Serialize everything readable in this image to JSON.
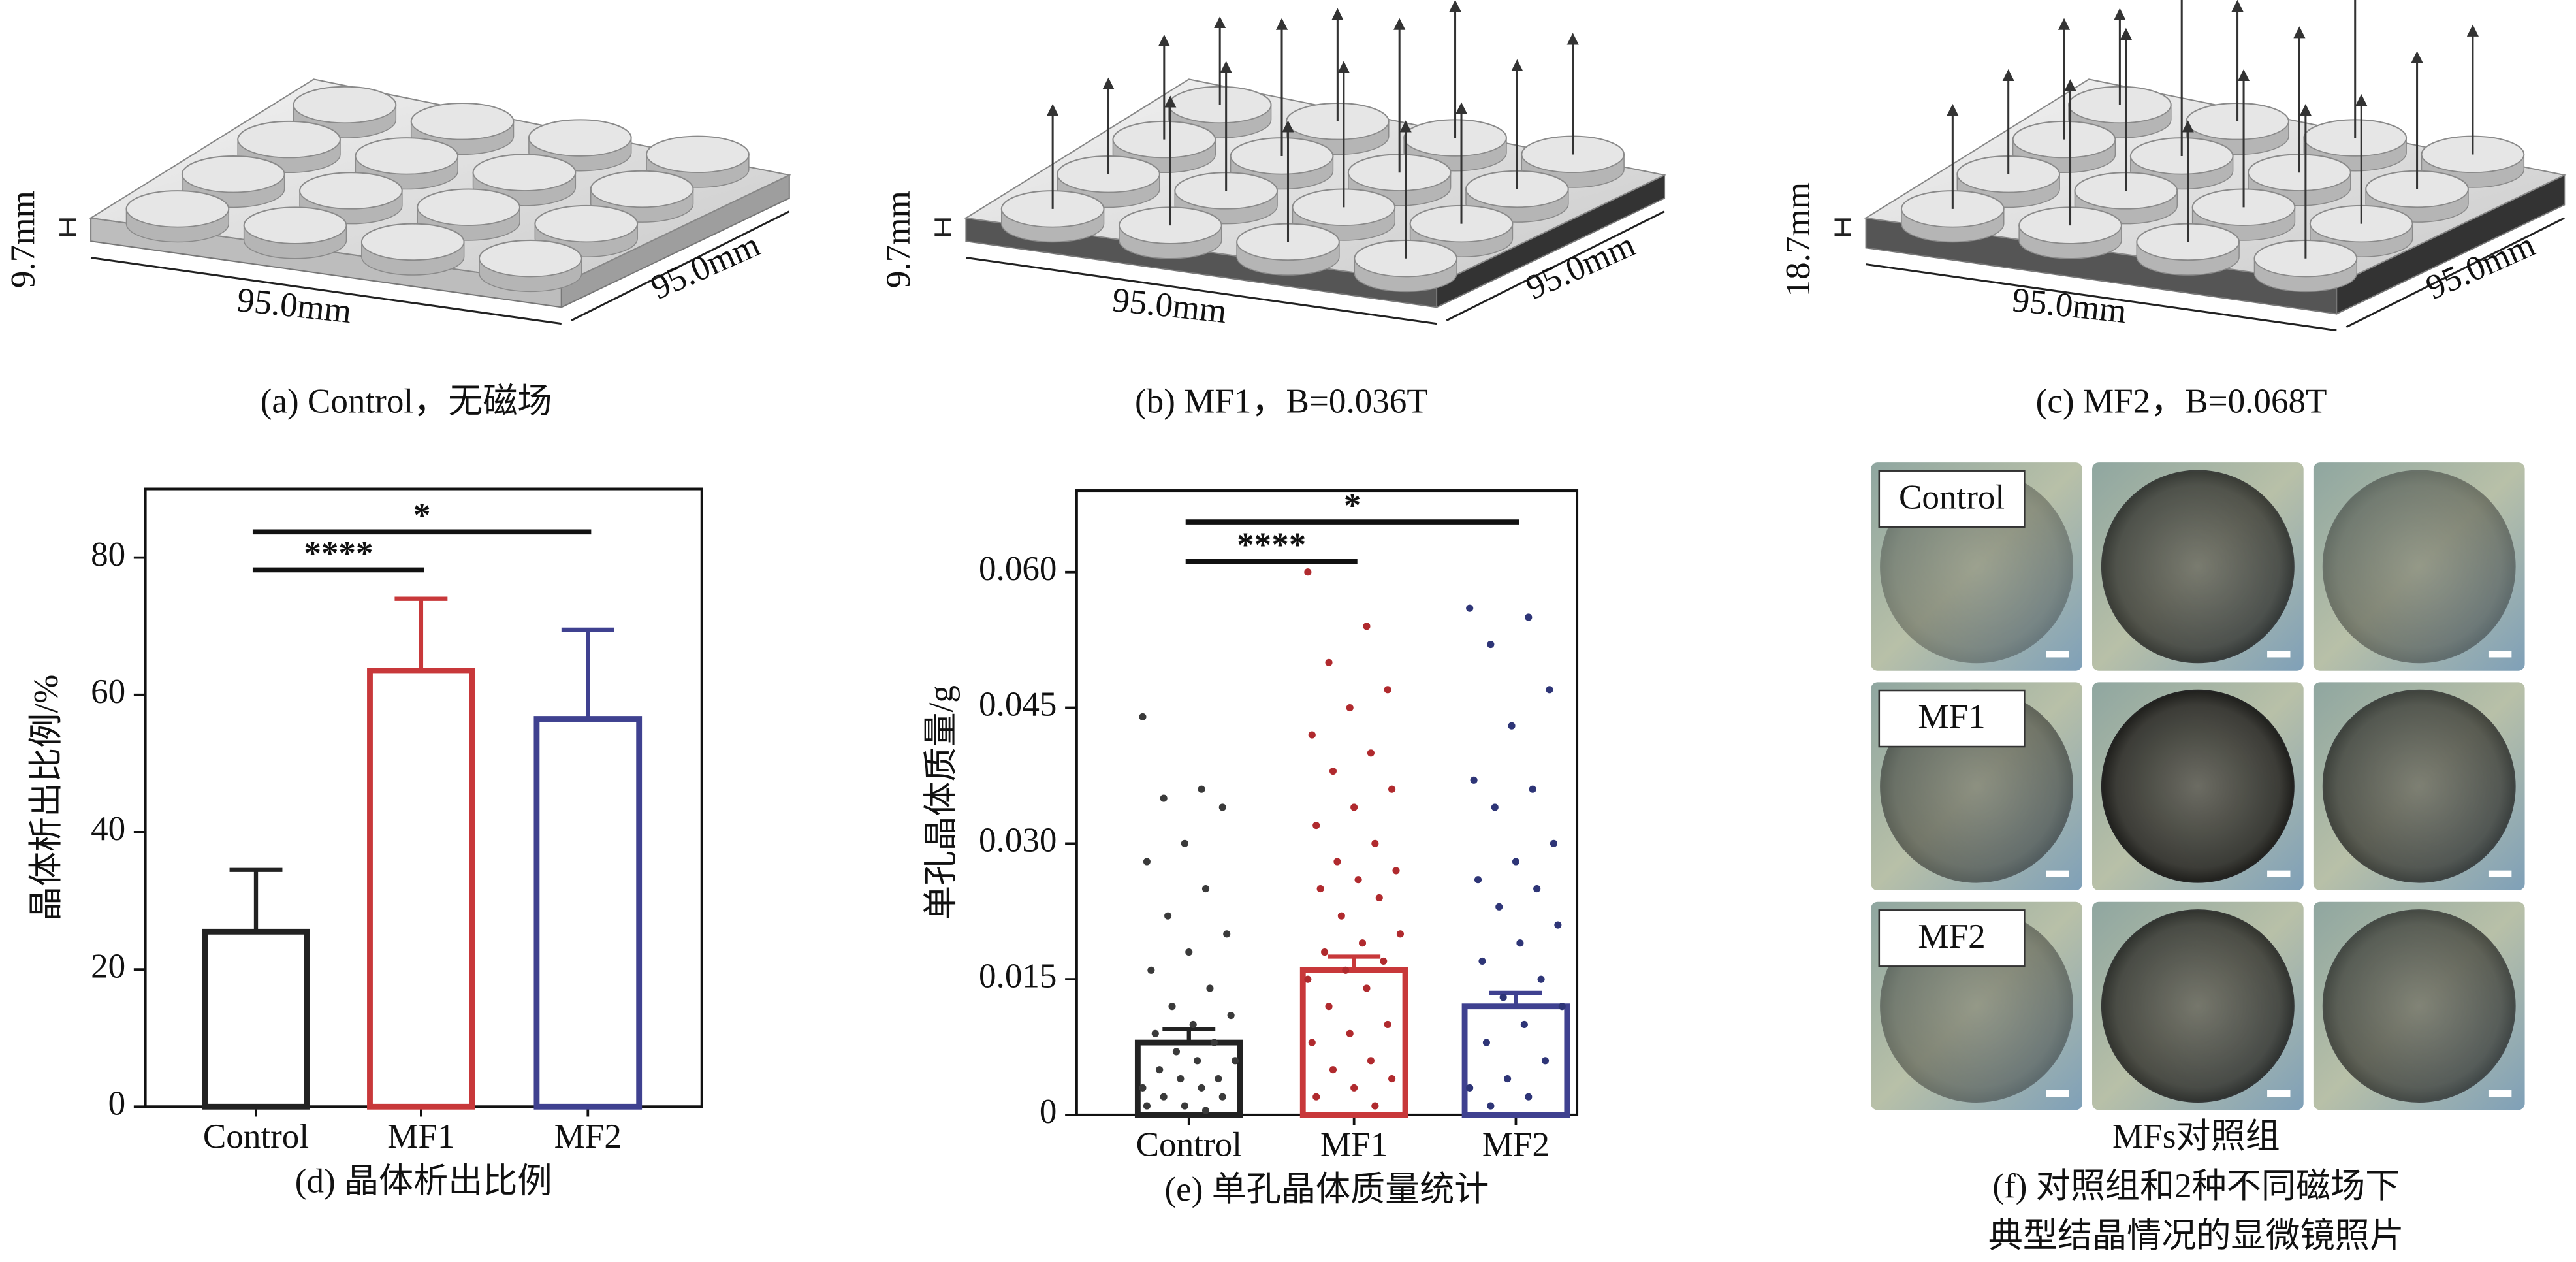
{
  "panels": [
    {
      "caption": "(a) Control，无磁场",
      "height_label": "9.7mm",
      "width_label": "95.0mm",
      "depth_label": "95.0mm"
    },
    {
      "caption": "(b) MF1，B=0.036T",
      "height_label": "9.7mm",
      "width_label": "95.0mm",
      "depth_label": "95.0mm"
    },
    {
      "caption": "(c) MF2，B=0.068T",
      "height_label": "18.7mm",
      "width_label": "95.0mm",
      "depth_label": "95.0mm"
    }
  ],
  "chart_data": [
    {
      "type": "bar",
      "caption": "(d) 晶体析出比例",
      "ylabel": "晶体析出比例/%",
      "categories": [
        "Control",
        "MF1",
        "MF2"
      ],
      "values": [
        25.5,
        63.5,
        56.5
      ],
      "errors": [
        9,
        10.5,
        13
      ],
      "colors": [
        "#222222",
        "#c8383a",
        "#3f4190"
      ],
      "ylim": [
        0,
        90
      ],
      "yticks": [
        0,
        20,
        40,
        60,
        80
      ],
      "annotations": [
        "****",
        "*"
      ]
    },
    {
      "type": "bar",
      "caption": "(e) 单孔晶体质量统计",
      "ylabel": "单孔晶体质量/g",
      "categories": [
        "Control",
        "MF1",
        "MF2"
      ],
      "values": [
        0.008,
        0.016,
        0.012
      ],
      "errors": [
        0.0015,
        0.0015,
        0.0015
      ],
      "colors": [
        "#222222",
        "#c8383a",
        "#3f4190"
      ],
      "point_colors": [
        "#3a3a3a",
        "#b02a2e",
        "#2e3577"
      ],
      "points": [
        [
          0.044,
          0.036,
          0.035,
          0.034,
          0.03,
          0.028,
          0.025,
          0.022,
          0.02,
          0.018,
          0.016,
          0.014,
          0.012,
          0.011,
          0.01,
          0.009,
          0.008,
          0.007,
          0.006,
          0.006,
          0.005,
          0.004,
          0.004,
          0.003,
          0.003,
          0.002,
          0.002,
          0.001,
          0.001,
          0.0005
        ],
        [
          0.06,
          0.054,
          0.05,
          0.047,
          0.045,
          0.042,
          0.04,
          0.038,
          0.036,
          0.034,
          0.032,
          0.03,
          0.028,
          0.027,
          0.026,
          0.025,
          0.024,
          0.022,
          0.02,
          0.019,
          0.018,
          0.017,
          0.016,
          0.015,
          0.014,
          0.012,
          0.01,
          0.009,
          0.008,
          0.006,
          0.005,
          0.004,
          0.003,
          0.002,
          0.001
        ],
        [
          0.056,
          0.055,
          0.052,
          0.047,
          0.043,
          0.037,
          0.036,
          0.034,
          0.03,
          0.028,
          0.026,
          0.025,
          0.023,
          0.021,
          0.019,
          0.017,
          0.015,
          0.013,
          0.012,
          0.01,
          0.008,
          0.006,
          0.004,
          0.003,
          0.002,
          0.001
        ]
      ],
      "ylim": [
        0,
        0.069
      ],
      "yticks": [
        0,
        0.015,
        {
          "value": 0.03,
          "label": "0.030"
        },
        0.045,
        {
          "value": 0.06,
          "label": "0.060"
        }
      ],
      "annotations": [
        "****",
        "*"
      ]
    }
  ],
  "photos": {
    "row_labels": [
      "Control",
      "MF1",
      "MF2"
    ],
    "title": "MFs对照组",
    "caption": [
      "(f) 对照组和2种不同磁场下",
      "典型结晶情况的显微镜照片"
    ]
  }
}
